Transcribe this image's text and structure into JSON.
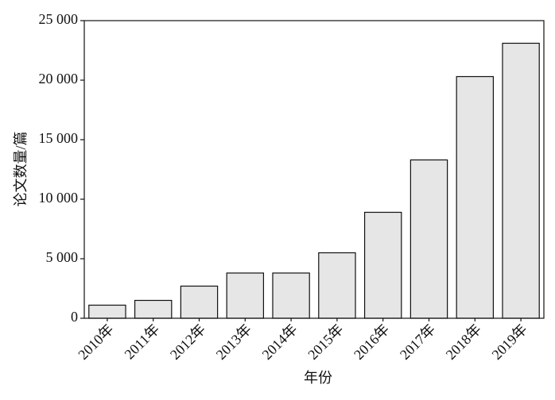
{
  "chart_data": {
    "type": "bar",
    "x_label": "年份",
    "y_label": "论文数量/篇",
    "categories": [
      "2010年",
      "2011年",
      "2012年",
      "2013年",
      "2014年",
      "2015年",
      "2016年",
      "2017年",
      "2018年",
      "2019年"
    ],
    "values": [
      1100,
      1500,
      2700,
      3800,
      3800,
      5500,
      8900,
      13300,
      20300,
      23100
    ],
    "color": "#e6e6e6",
    "ylim": [
      0,
      25000
    ],
    "yticks": [
      0,
      {
        "value": 5000,
        "label": "5 000"
      },
      {
        "value": 10000,
        "label": "10 000"
      },
      {
        "value": 15000,
        "label": "15 000"
      },
      {
        "value": 20000,
        "label": "20 000"
      },
      {
        "value": 25000,
        "label": "25 000"
      }
    ],
    "grid": false
  }
}
